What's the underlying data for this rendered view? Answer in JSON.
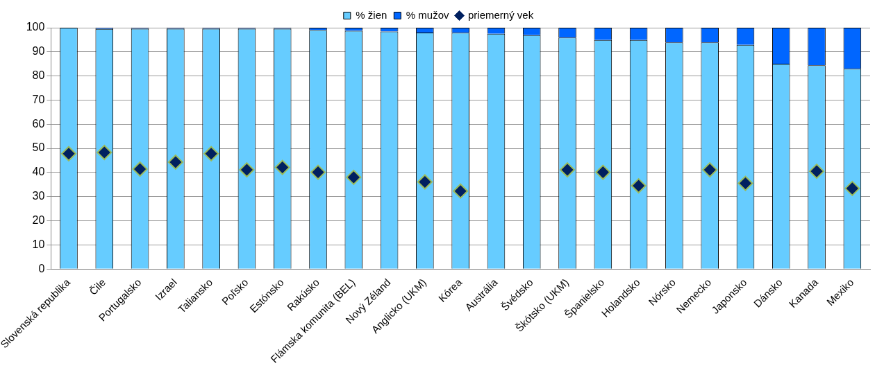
{
  "chart_data": {
    "type": "bar",
    "stacked": true,
    "legend": "top",
    "grid": "y",
    "ylim": [
      0,
      100
    ],
    "yticks": [
      0,
      10,
      20,
      30,
      40,
      50,
      60,
      70,
      80,
      90,
      100
    ],
    "categories": [
      "Slovenská republika",
      "Čile",
      "Portugalsko",
      "Izrael",
      "Taliansko",
      "Poľsko",
      "Estónsko",
      "Rakúsko",
      "Flámska komunita (BEL)",
      "Nový Zéland",
      "Anglicko (UKM)",
      "Kórea",
      "Austrália",
      "Švédsko",
      "Škótsko (UKM)",
      "Španielsko",
      "Holandsko",
      "Nórsko",
      "Nemecko",
      "Japonsko",
      "Dánsko",
      "Kanada",
      "Mexiko"
    ],
    "series": [
      {
        "name": "% žien",
        "color": "#66ccff",
        "values": [
          100,
          99.5,
          99.6,
          99.6,
          99.6,
          99.6,
          99.6,
          99.1,
          98.7,
          98.4,
          98,
          97.9,
          97.5,
          96.9,
          95.9,
          94.9,
          94.9,
          93.9,
          93.9,
          92.9,
          85.1,
          84.4,
          83
        ]
      },
      {
        "name": "% mužov",
        "color": "#0066ff",
        "values": [
          0,
          0.5,
          0.4,
          0.4,
          0.4,
          0.4,
          0.4,
          0.9,
          1.3,
          1.6,
          2,
          2.1,
          2.5,
          3.1,
          4.1,
          5.1,
          5.1,
          6.1,
          6.1,
          7.1,
          14.9,
          15.6,
          17
        ]
      },
      {
        "name": "priemerný vek",
        "type": "scatter",
        "marker": "diamond",
        "color": "#002060",
        "values": [
          47.8,
          48.3,
          41.4,
          44.3,
          47.8,
          41.1,
          42.1,
          40.1,
          38,
          null,
          36.1,
          32.3,
          null,
          null,
          41.1,
          40.1,
          34.5,
          null,
          41.1,
          35.5,
          null,
          40.5,
          33.4
        ]
      }
    ]
  }
}
